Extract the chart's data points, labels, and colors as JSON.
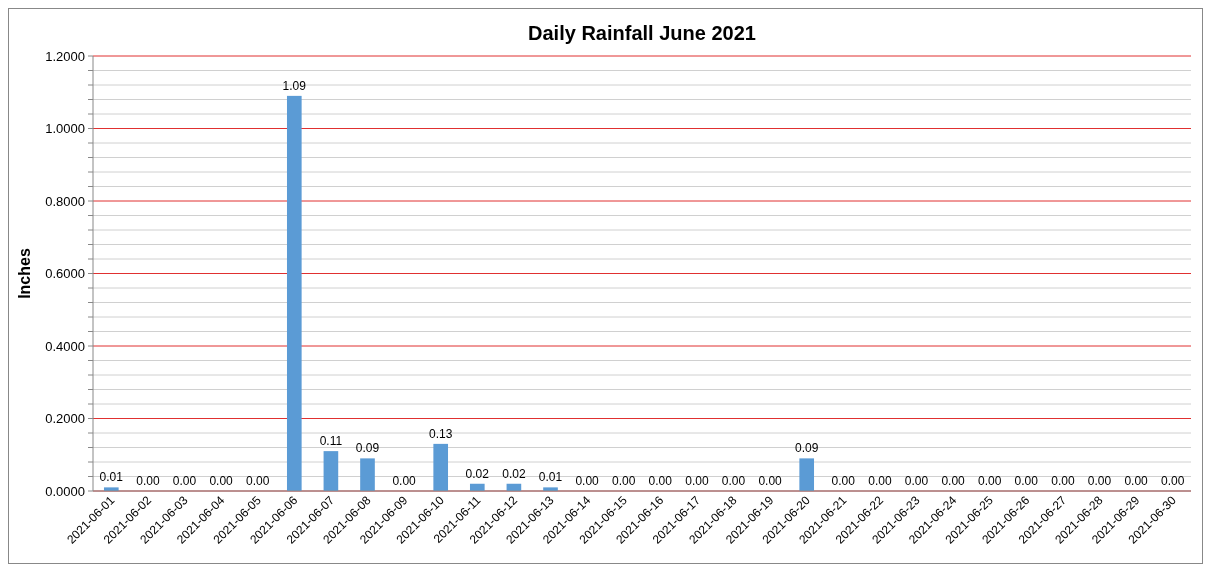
{
  "chart_data": {
    "type": "bar",
    "title": "Daily Rainfall June 2021",
    "ylabel": "Inches",
    "categories": [
      "2021-06-01",
      "2021-06-02",
      "2021-06-03",
      "2021-06-04",
      "2021-06-05",
      "2021-06-06",
      "2021-06-07",
      "2021-06-08",
      "2021-06-09",
      "2021-06-10",
      "2021-06-11",
      "2021-06-12",
      "2021-06-13",
      "2021-06-14",
      "2021-06-15",
      "2021-06-16",
      "2021-06-17",
      "2021-06-18",
      "2021-06-19",
      "2021-06-20",
      "2021-06-21",
      "2021-06-22",
      "2021-06-23",
      "2021-06-24",
      "2021-06-25",
      "2021-06-26",
      "2021-06-27",
      "2021-06-28",
      "2021-06-29",
      "2021-06-30"
    ],
    "values": [
      0.01,
      0,
      0,
      0,
      0,
      1.09,
      0.11,
      0.09,
      0,
      0.13,
      0.02,
      0.02,
      0.01,
      0,
      0,
      0,
      0,
      0,
      0,
      0.09,
      0,
      0,
      0,
      0,
      0,
      0,
      0,
      0,
      0,
      0
    ],
    "value_labels": [
      "0.01",
      "0.00",
      "0.00",
      "0.00",
      "0.00",
      "1.09",
      "0.11",
      "0.09",
      "0.00",
      "0.13",
      "0.02",
      "0.02",
      "0.01",
      "0.00",
      "0.00",
      "0.00",
      "0.00",
      "0.00",
      "0.00",
      "0.09",
      "0.00",
      "0.00",
      "0.00",
      "0.00",
      "0.00",
      "0.00",
      "0.00",
      "0.00",
      "0.00",
      "0.00"
    ],
    "color": "#5b9bd5",
    "ylim": [
      0,
      1.2
    ],
    "yticks": [
      {
        "value": 0,
        "label": "0.0000"
      },
      {
        "value": 0.04,
        "label": null
      },
      {
        "value": 0.08,
        "label": null
      },
      {
        "value": 0.12,
        "label": null
      },
      {
        "value": 0.16,
        "label": null
      },
      {
        "value": 0.2,
        "label": "0.2000"
      },
      {
        "value": 0.24,
        "label": null
      },
      {
        "value": 0.28,
        "label": null
      },
      {
        "value": 0.32,
        "label": null
      },
      {
        "value": 0.36,
        "label": null
      },
      {
        "value": 0.4,
        "label": "0.4000"
      },
      {
        "value": 0.44,
        "label": null
      },
      {
        "value": 0.48,
        "label": null
      },
      {
        "value": 0.52,
        "label": null
      },
      {
        "value": 0.56,
        "label": null
      },
      {
        "value": 0.6,
        "label": "0.6000"
      },
      {
        "value": 0.64,
        "label": null
      },
      {
        "value": 0.68,
        "label": null
      },
      {
        "value": 0.72,
        "label": null
      },
      {
        "value": 0.76,
        "label": null
      },
      {
        "value": 0.8,
        "label": "0.8000"
      },
      {
        "value": 0.84,
        "label": null
      },
      {
        "value": 0.88,
        "label": null
      },
      {
        "value": 0.92,
        "label": null
      },
      {
        "value": 0.96,
        "label": null
      },
      {
        "value": 1.0,
        "label": "1.0000"
      },
      {
        "value": 1.04,
        "label": null
      },
      {
        "value": 1.08,
        "label": null
      },
      {
        "value": 1.12,
        "label": null
      },
      {
        "value": 1.16,
        "label": null
      },
      {
        "value": 1.2,
        "label": "1.2000"
      }
    ],
    "grid": true
  }
}
